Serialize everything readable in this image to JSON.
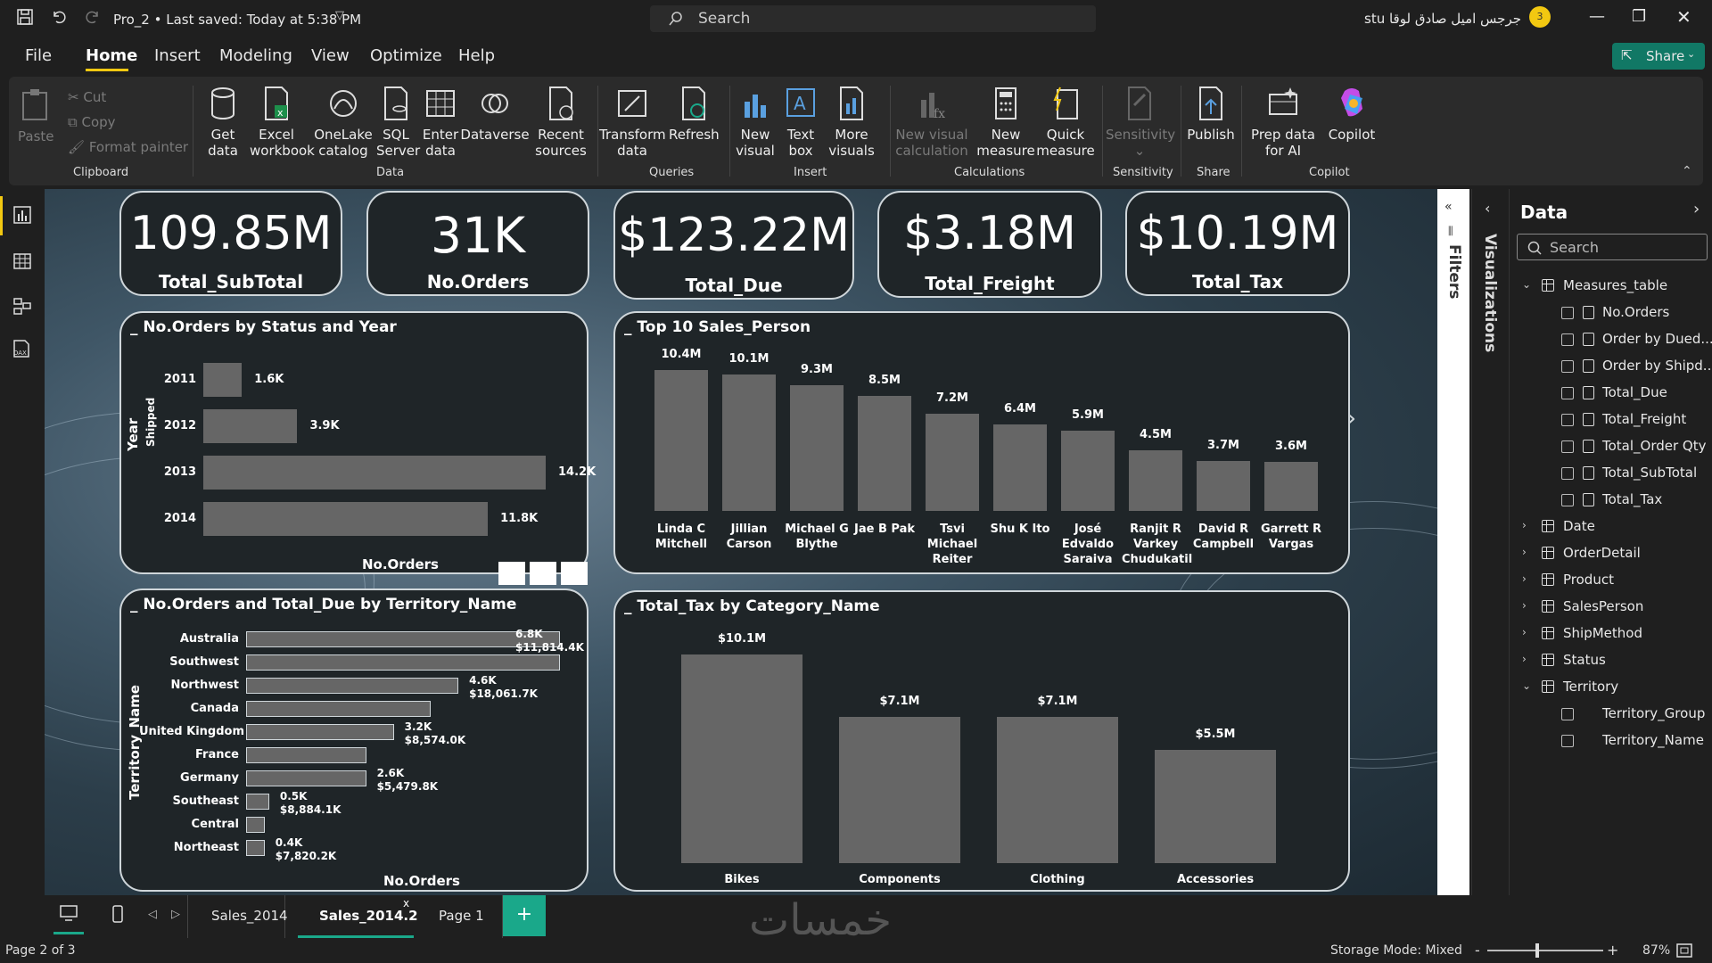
{
  "titlebar": {
    "file_title": "Pro_2 • Last saved: Today at 5:38 PM",
    "search_placeholder": "Search",
    "user_name": "stu جرجس اميل صادق لوقا",
    "avatar_text": "3"
  },
  "menu": {
    "items": [
      "File",
      "Home",
      "Insert",
      "Modeling",
      "View",
      "Optimize",
      "Help"
    ],
    "active": "Home",
    "share_label": "Share"
  },
  "ribbon": {
    "clipboard": {
      "paste": "Paste",
      "cut": "Cut",
      "copy": "Copy",
      "format_painter": "Format painter",
      "group": "Clipboard"
    },
    "data": {
      "get_data": "Get data",
      "excel": "Excel workbook",
      "onelake": "OneLake catalog",
      "sql": "SQL Server",
      "enter": "Enter data",
      "dataverse": "Dataverse",
      "recent": "Recent sources",
      "group": "Data"
    },
    "queries": {
      "transform": "Transform data",
      "refresh": "Refresh",
      "group": "Queries"
    },
    "insert": {
      "new_visual": "New visual",
      "text_box": "Text box",
      "more_visuals": "More visuals",
      "group": "Insert"
    },
    "calculations": {
      "new_visual_calc": "New visual calculation",
      "new_measure": "New measure",
      "quick_measure": "Quick measure",
      "group": "Calculations"
    },
    "sensitivity": {
      "label": "Sensitivity",
      "group": "Sensitivity"
    },
    "share": {
      "publish": "Publish",
      "group": "Share"
    },
    "copilot": {
      "prep": "Prep data for AI",
      "copilot": "Copilot",
      "group": "Copilot"
    }
  },
  "kpis": [
    {
      "value": "109.85M",
      "label": "Total_SubTotal"
    },
    {
      "value": "31K",
      "label": "No.Orders"
    },
    {
      "value": "$123.22M",
      "label": "Total_Due"
    },
    {
      "value": "$3.18M",
      "label": "Total_Freight"
    },
    {
      "value": "$10.19M",
      "label": "Total_Tax"
    }
  ],
  "chart_data": [
    {
      "type": "bar",
      "orientation": "horizontal",
      "title": "No.Orders by Status and Year",
      "xlabel": "No.Orders",
      "ylabel": "Year",
      "group_label": "Shipped",
      "categories": [
        "2011",
        "2012",
        "2013",
        "2014"
      ],
      "values": [
        1600,
        3900,
        14200,
        11800
      ],
      "data_labels": [
        "1.6K",
        "3.9K",
        "14.2K",
        "11.8K"
      ],
      "xlim": [
        0,
        14200
      ]
    },
    {
      "type": "bar",
      "title": "Top 10 Sales_Person",
      "categories": [
        "Linda C Mitchell",
        "Jillian Carson",
        "Michael G Blythe",
        "Jae B Pak",
        "Tsvi Michael Reiter",
        "Shu K Ito",
        "José Edvaldo Saraiva",
        "Ranjit R Varkey Chudukatil",
        "David R Campbell",
        "Garrett R Vargas"
      ],
      "values": [
        10.4,
        10.1,
        9.3,
        8.5,
        7.2,
        6.4,
        5.9,
        4.5,
        3.7,
        3.6
      ],
      "data_labels": [
        "10.4M",
        "10.1M",
        "9.3M",
        "8.5M",
        "7.2M",
        "6.4M",
        "5.9M",
        "4.5M",
        "3.7M",
        "3.6M"
      ],
      "ylim": [
        0,
        10.4
      ]
    },
    {
      "type": "bar",
      "orientation": "horizontal",
      "title": "No.Orders and Total_Due by Territory_Name",
      "xlabel": "No.Orders",
      "ylabel": "Territory_Name",
      "categories": [
        "Australia",
        "Southwest",
        "Northwest",
        "Canada",
        "United Kingdom",
        "France",
        "Germany",
        "Southeast",
        "Central",
        "Northeast"
      ],
      "series": [
        {
          "name": "No.Orders",
          "values": [
            6.8,
            6.8,
            4.6,
            4.0,
            3.2,
            2.6,
            2.6,
            0.5,
            0.4,
            0.4
          ]
        },
        {
          "name": "Total_Due",
          "values": [
            11814.4,
            null,
            18061.7,
            null,
            8574.0,
            null,
            5479.8,
            8884.1,
            null,
            7820.2
          ]
        }
      ],
      "data_labels": [
        {
          "category": "Australia",
          "orders": "6.8K",
          "due": "$11,814.4K"
        },
        {
          "category": "Northwest",
          "orders": "4.6K",
          "due": "$18,061.7K"
        },
        {
          "category": "United Kingdom",
          "orders": "3.2K",
          "due": "$8,574.0K"
        },
        {
          "category": "Germany",
          "orders": "2.6K",
          "due": "$5,479.8K"
        },
        {
          "category": "Southeast",
          "orders": "0.5K",
          "due": "$8,884.1K"
        },
        {
          "category": "Northeast",
          "orders": "0.4K",
          "due": "$7,820.2K"
        }
      ],
      "xlim": [
        0,
        6.8
      ]
    },
    {
      "type": "bar",
      "title": "Total_Tax by Category_Name",
      "categories": [
        "Bikes",
        "Components",
        "Clothing",
        "Accessories"
      ],
      "values": [
        10.1,
        7.1,
        7.1,
        5.5
      ],
      "data_labels": [
        "$10.1M",
        "$7.1M",
        "$7.1M",
        "$5.5M"
      ],
      "ylim": [
        0,
        10.1
      ]
    }
  ],
  "panes": {
    "filters_label": "Filters",
    "visualizations_label": "Visualizations",
    "data_title": "Data",
    "search_placeholder": "Search",
    "tables": [
      {
        "name": "Measures_table",
        "expanded": true,
        "fields": [
          "No.Orders",
          "Order by Dued...",
          "Order by Shipd...",
          "Total_Due",
          "Total_Freight",
          "Total_Order Qty",
          "Total_SubTotal",
          "Total_Tax"
        ]
      },
      {
        "name": "Date",
        "expanded": false,
        "fields": []
      },
      {
        "name": "OrderDetail",
        "expanded": false,
        "fields": []
      },
      {
        "name": "Product",
        "expanded": false,
        "fields": []
      },
      {
        "name": "SalesPerson",
        "expanded": false,
        "fields": []
      },
      {
        "name": "ShipMethod",
        "expanded": false,
        "fields": []
      },
      {
        "name": "Status",
        "expanded": false,
        "fields": []
      },
      {
        "name": "Territory",
        "expanded": true,
        "fields": [
          "Territory_Group",
          "Territory_Name"
        ]
      }
    ]
  },
  "tabs": {
    "pages": [
      "Sales_2014",
      "Sales_2014.2",
      "Page 1"
    ],
    "active": "Sales_2014.2",
    "close_label": "x",
    "add_label": "+"
  },
  "status": {
    "page_info": "Page 2 of 3",
    "storage_mode": "Storage Mode: Mixed",
    "zoom": "87%",
    "zoom_minus": "-",
    "zoom_plus": "+"
  },
  "watermark": "خمسات",
  "colors": {
    "accent": "#f2c811",
    "share_button": "#117865",
    "add_tab": "#1aa88a",
    "bar": "#666666",
    "card_bg": "#1f2528"
  }
}
